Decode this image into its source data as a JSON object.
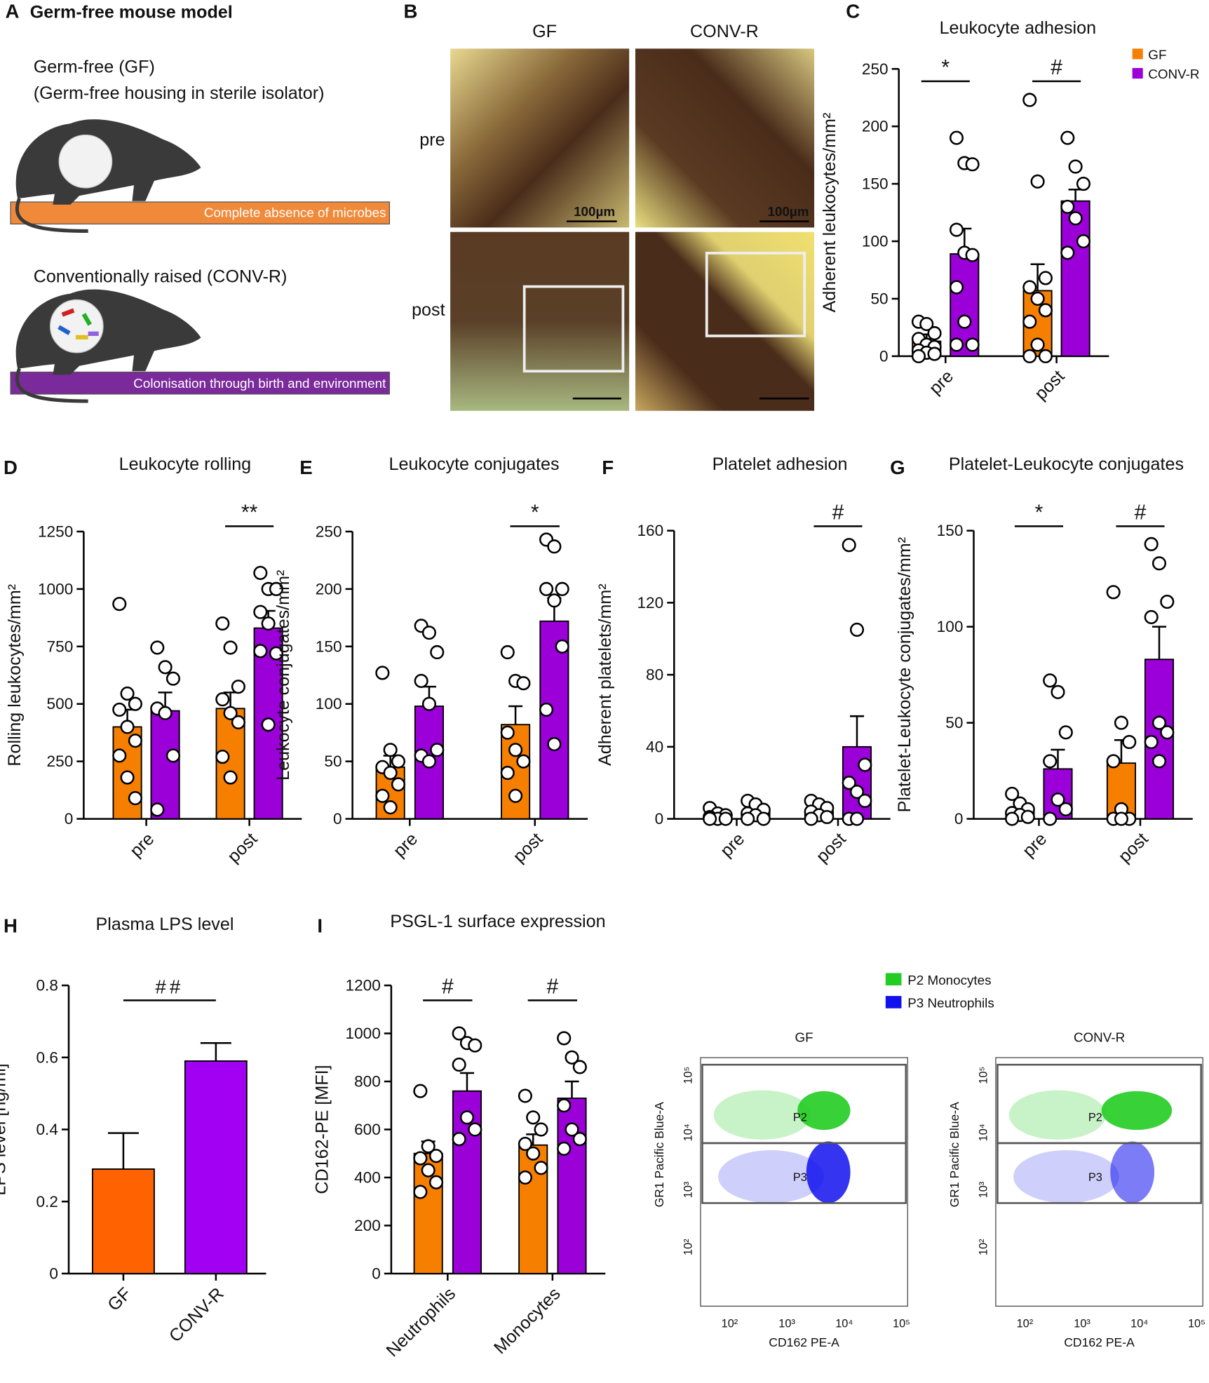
{
  "figure": {
    "panel_a": {
      "label": "A",
      "title": "Germ-free mouse model",
      "gf_heading": "Germ-free (GF)",
      "gf_subheading": "(Germ-free housing in sterile isolator)",
      "gf_banner": "Complete absence of microbes",
      "conv_heading": "Conventionally raised (CONV-R)",
      "conv_banner": "Colonisation through birth and environment"
    },
    "panel_b": {
      "label": "B",
      "columns": [
        "GF",
        "CONV-R"
      ],
      "rows": [
        "pre",
        "post"
      ],
      "scale_bar": "100µm"
    },
    "flow": {
      "legend": [
        {
          "name": "P2 Monocytes",
          "color": "#22cc22"
        },
        {
          "name": "P3 Neutrophils",
          "color": "#1111ee"
        }
      ],
      "plots": [
        "GF",
        "CONV-R"
      ],
      "gates": [
        "P2",
        "P3"
      ],
      "x_label": "CD162 PE-A",
      "y_label": "GR1 Pacific Blue-A",
      "x_ticks": [
        "10²",
        "10³",
        "10⁴",
        "10⁵"
      ],
      "y_ticks": [
        "10²",
        "10³",
        "10⁴",
        "10⁵"
      ]
    }
  },
  "chart_data": [
    {
      "type": "bar",
      "panel": "C",
      "title": "Leukocyte adhesion",
      "y_label": "Adherent leukocytes/mm²",
      "categories": [
        "pre",
        "post"
      ],
      "series": [
        {
          "name": "GF",
          "color": "#f77f00",
          "values": [
            13,
            57
          ],
          "errors": [
            6,
            23
          ],
          "points": [
            [
              30,
              28,
              20,
              15,
              10,
              8,
              5,
              3,
              2,
              0
            ],
            [
              223,
              152,
              68,
              60,
              50,
              40,
              30,
              10,
              0,
              0
            ]
          ]
        },
        {
          "name": "CONV-R",
          "color": "#9b00d9",
          "values": [
            89,
            135
          ],
          "errors": [
            22,
            10
          ],
          "points": [
            [
              190,
              168,
              167,
              110,
              90,
              88,
              60,
              30,
              10,
              10
            ],
            [
              190,
              165,
              150,
              130,
              120,
              100,
              90
            ]
          ]
        }
      ],
      "ylim": [
        0,
        250
      ],
      "yticks": [
        0,
        50,
        100,
        150,
        200,
        250
      ],
      "annotations": [
        "*",
        "#"
      ],
      "legend": "top-right"
    },
    {
      "type": "bar",
      "panel": "D",
      "title": "Leukocyte rolling",
      "y_label": "Rolling leukocytes/mm²",
      "categories": [
        "pre",
        "post"
      ],
      "series": [
        {
          "color": "#f77f00",
          "values": [
            400,
            480
          ],
          "errors": [
            75,
            70
          ],
          "points": [
            [
              935,
              545,
              500,
              475,
              400,
              340,
              275,
              180,
              90
            ],
            [
              850,
              745,
              575,
              520,
              460,
              420,
              270,
              180
            ]
          ]
        },
        {
          "color": "#9b00d9",
          "values": [
            470,
            830
          ],
          "errors": [
            80,
            75
          ],
          "points": [
            [
              745,
              660,
              610,
              480,
              460,
              275,
              40
            ],
            [
              1070,
              1000,
              1000,
              900,
              850,
              720,
              730,
              410
            ]
          ]
        }
      ],
      "ylim": [
        0,
        1250
      ],
      "yticks": [
        0,
        250,
        500,
        750,
        1000,
        1250
      ],
      "annotations": [
        null,
        "**"
      ]
    },
    {
      "type": "bar",
      "panel": "E",
      "title": "Leukocyte conjugates",
      "y_label": "Leukocyte conjugates/mm²",
      "categories": [
        "pre",
        "post"
      ],
      "series": [
        {
          "color": "#f77f00",
          "values": [
            45,
            82
          ],
          "errors": [
            10,
            16
          ],
          "points": [
            [
              127,
              60,
              50,
              45,
              40,
              30,
              20,
              10
            ],
            [
              145,
              120,
              118,
              75,
              60,
              50,
              40,
              20
            ]
          ]
        },
        {
          "color": "#9b00d9",
          "values": [
            98,
            172
          ],
          "errors": [
            17,
            20
          ],
          "points": [
            [
              168,
              162,
              145,
              120,
              100,
              60,
              55,
              50
            ],
            [
              243,
              237,
              200,
              200,
              190,
              150,
              95,
              65
            ]
          ]
        }
      ],
      "ylim": [
        0,
        250
      ],
      "yticks": [
        0,
        50,
        100,
        150,
        200,
        250
      ],
      "annotations": [
        null,
        "*"
      ]
    },
    {
      "type": "bar",
      "panel": "F",
      "title": "Platelet adhesion",
      "y_label": "Adherent platelets/mm²",
      "categories": [
        "pre",
        "post"
      ],
      "series": [
        {
          "color": "#f77f00",
          "values": [
            1.5,
            4
          ],
          "errors": [
            0.8,
            1.5
          ],
          "points": [
            [
              6,
              3,
              2,
              1,
              0,
              0,
              0
            ],
            [
              10,
              8,
              6,
              4,
              2,
              1,
              0
            ]
          ]
        },
        {
          "color": "#9b00d9",
          "values": [
            3.5,
            40
          ],
          "errors": [
            1.5,
            17
          ],
          "points": [
            [
              10,
              8,
              5,
              3,
              2,
              0,
              0
            ],
            [
              152,
              105,
              30,
              20,
              15,
              10,
              0,
              0
            ]
          ]
        }
      ],
      "ylim": [
        0,
        160
      ],
      "yticks": [
        0,
        40,
        80,
        120,
        160
      ],
      "annotations": [
        null,
        "#"
      ]
    },
    {
      "type": "bar",
      "panel": "G",
      "title": "Platelet-Leukocyte conjugates",
      "y_label": "Platelet-Leukocyte conjugates/mm²",
      "categories": [
        "pre",
        "post"
      ],
      "series": [
        {
          "color": "#f77f00",
          "values": [
            4,
            29
          ],
          "errors": [
            1.5,
            12
          ],
          "points": [
            [
              13,
              8,
              5,
              3,
              2,
              1,
              0
            ],
            [
              118,
              50,
              40,
              30,
              5,
              0,
              0,
              0
            ]
          ]
        },
        {
          "color": "#9b00d9",
          "values": [
            26,
            83
          ],
          "errors": [
            10,
            17
          ],
          "points": [
            [
              72,
              66,
              45,
              30,
              10,
              5,
              0
            ],
            [
              143,
              133,
              113,
              105,
              50,
              45,
              40,
              30
            ]
          ]
        }
      ],
      "ylim": [
        0,
        150
      ],
      "yticks": [
        0,
        50,
        100,
        150
      ],
      "annotations": [
        "*",
        "#"
      ]
    },
    {
      "type": "bar",
      "panel": "H",
      "title": "Plasma LPS level",
      "y_label": "LPS level [ng/ml]",
      "categories": [
        "GF",
        "CONV-R"
      ],
      "series": [
        {
          "colors": [
            "#ff6200",
            "#a100f2"
          ],
          "values": [
            0.29,
            0.59
          ],
          "errors": [
            0.1,
            0.05
          ]
        }
      ],
      "ylim": [
        0,
        0.8
      ],
      "yticks": [
        0,
        0.2,
        0.4,
        0.6,
        0.8
      ],
      "annotation": "##"
    },
    {
      "type": "bar",
      "panel": "I",
      "title": "PSGL-1 surface expression",
      "y_label": "CD162-PE [MFI]",
      "categories": [
        "Neutrophils",
        "Monocytes"
      ],
      "series": [
        {
          "color": "#f77f00",
          "values": [
            500,
            535
          ],
          "errors": [
            50,
            45
          ],
          "points": [
            [
              760,
              530,
              490,
              480,
              430,
              380,
              340
            ],
            [
              740,
              650,
              600,
              540,
              500,
              440,
              400
            ]
          ]
        },
        {
          "color": "#9b00d9",
          "values": [
            760,
            730
          ],
          "errors": [
            75,
            70
          ],
          "points": [
            [
              1000,
              960,
              950,
              870,
              650,
              600,
              560
            ],
            [
              980,
              900,
              860,
              700,
              600,
              560,
              520
            ]
          ]
        }
      ],
      "ylim": [
        0,
        1200
      ],
      "yticks": [
        0,
        200,
        400,
        600,
        800,
        1000,
        1200
      ],
      "annotations": [
        "#",
        "#"
      ]
    }
  ]
}
